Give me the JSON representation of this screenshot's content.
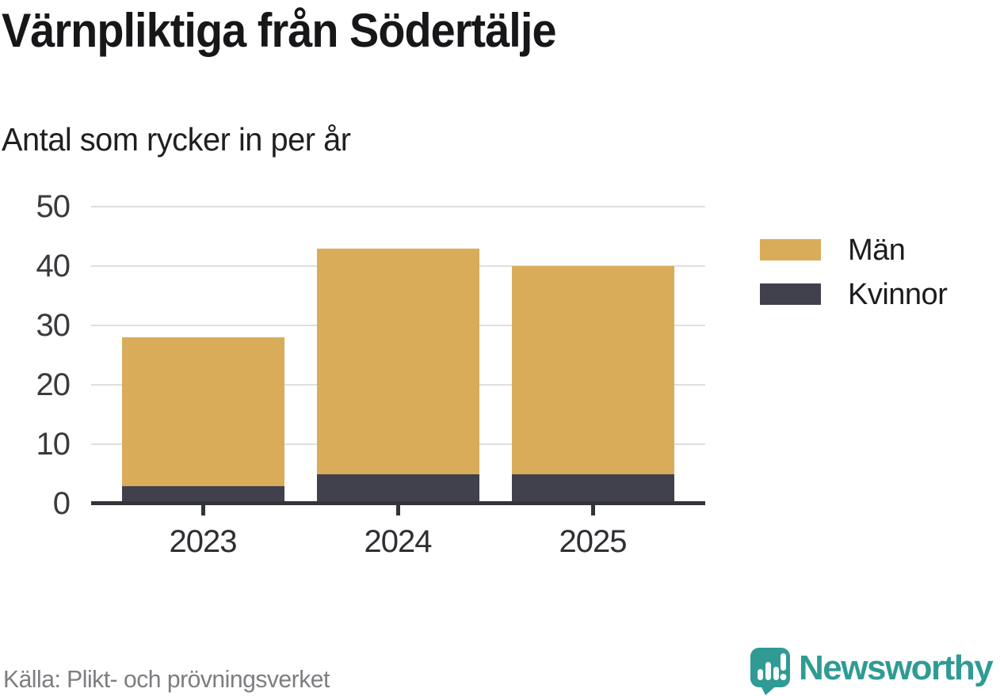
{
  "header": {
    "title": "Värnpliktiga från Södertälje",
    "subtitle": "Antal som rycker in per år"
  },
  "chart_data": {
    "type": "bar",
    "stacked": true,
    "categories": [
      "2023",
      "2024",
      "2025"
    ],
    "series": [
      {
        "name": "Män",
        "color": "#d9ac5a",
        "values": [
          25,
          38,
          35
        ]
      },
      {
        "name": "Kvinnor",
        "color": "#41414d",
        "values": [
          3,
          5,
          5
        ]
      }
    ],
    "stack_totals": [
      28,
      43,
      40
    ],
    "yticks": [
      0,
      10,
      20,
      30,
      40,
      50
    ],
    "ylim": [
      0,
      50
    ],
    "xlabel": "",
    "ylabel": "",
    "grid": "horizontal",
    "legend_position": "right"
  },
  "footer": {
    "source": "Källa: Plikt- och prövningsverket",
    "brand": "Newsworthy"
  },
  "icons": {
    "brand_logo": "newsworthy-speech-bubble-chart-icon"
  },
  "colors": {
    "men_gold": "#d9ac5a",
    "women_dark": "#41414d",
    "brand_teal": "#2f9b94",
    "gridline": "#dfdfdf",
    "axis": "#33333a",
    "title_text": "#17171a",
    "muted_text": "#7e7e82"
  }
}
